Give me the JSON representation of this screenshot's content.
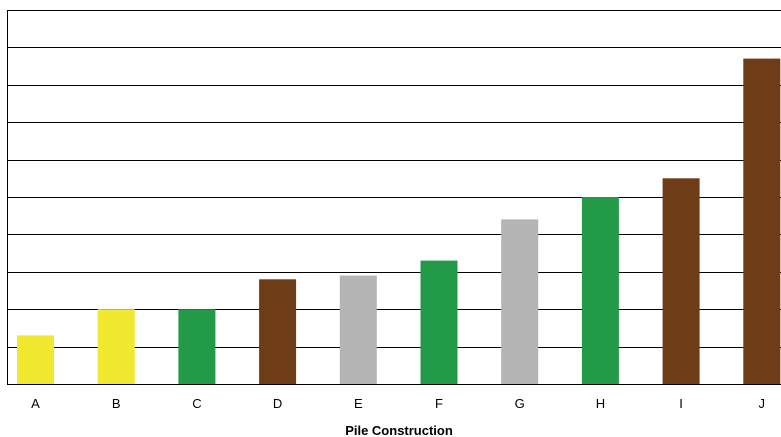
{
  "chart_data": {
    "type": "bar",
    "title": "",
    "xlabel": "Pile Construction",
    "ylabel": "",
    "categories": [
      "A",
      "B",
      "C",
      "D",
      "E",
      "F",
      "G",
      "H",
      "I",
      "J"
    ],
    "values": [
      1.3,
      2.0,
      2.0,
      2.8,
      2.9,
      3.3,
      4.4,
      5.0,
      5.5,
      8.7
    ],
    "bar_colors": [
      "#f0e930",
      "#f0e930",
      "#229a48",
      "#6e3d17",
      "#b4b4b4",
      "#229a48",
      "#b4b4b4",
      "#229a48",
      "#6e3d17",
      "#6e3d17"
    ],
    "ylim": [
      0,
      10
    ],
    "y_gridlines": [
      0,
      1,
      2,
      3,
      4,
      5,
      6,
      7,
      8,
      9,
      10
    ],
    "grid": true,
    "y_tick_labels": false,
    "legend": false
  },
  "colors": {
    "gridline": "#000000",
    "background": "#ffffff"
  }
}
